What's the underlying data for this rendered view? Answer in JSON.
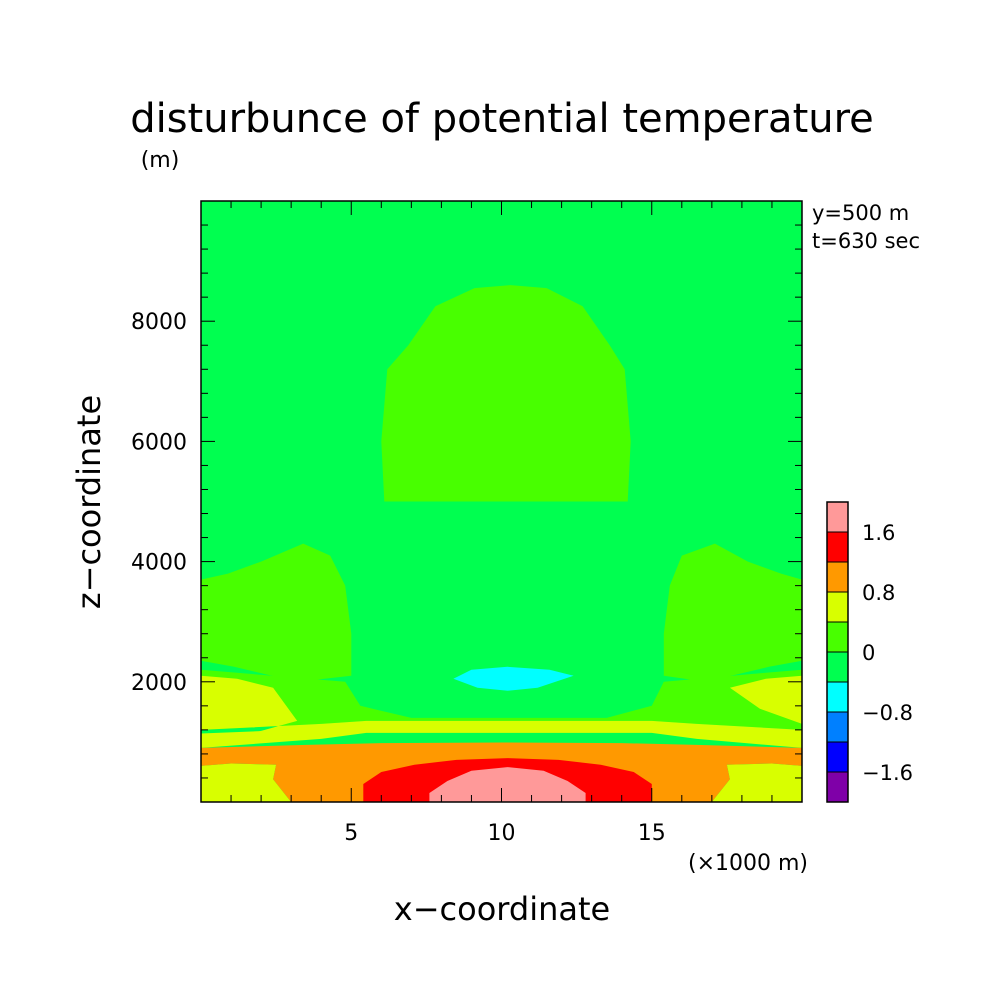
{
  "chart_data": {
    "type": "heatmap",
    "title": "disturbunce of potential temperature",
    "y_unit": "(m)",
    "xlabel": "x−coordinate",
    "ylabel": "z−coordinate",
    "x_scale_note": "(×1000 m)",
    "annotations": [
      "y=500 m",
      "t=630 sec"
    ],
    "xlim": [
      0,
      20
    ],
    "ylim": [
      0,
      10000
    ],
    "x_ticks": [
      5,
      10,
      15
    ],
    "x_tick_labels": [
      "5",
      "10",
      "15"
    ],
    "y_ticks": [
      2000,
      4000,
      6000,
      8000
    ],
    "y_tick_labels": [
      "2000",
      "4000",
      "6000",
      "8000"
    ],
    "colorbar": {
      "levels": [
        -2.0,
        -1.6,
        -1.2,
        -0.8,
        -0.4,
        0,
        0.4,
        0.8,
        1.2,
        1.6,
        2.0
      ],
      "colors": [
        "#7f00a8",
        "#0000ff",
        "#0080ff",
        "#00ffff",
        "#00ff50",
        "#48ff00",
        "#d8ff00",
        "#ff9900",
        "#ff0000",
        "#ff9999"
      ],
      "tick_values": [
        1.6,
        0.8,
        0,
        -0.8,
        -1.6
      ],
      "tick_labels": [
        "1.6",
        "0.8",
        "0",
        "−0.8",
        "−1.6"
      ]
    },
    "background_level_color": "#00ff50",
    "regions": [
      {
        "name": "warm-dome",
        "level_range": [
          0,
          0.4
        ],
        "color": "#48ff00",
        "polygon": [
          [
            6.1,
            5000
          ],
          [
            6.0,
            6000
          ],
          [
            6.2,
            7200
          ],
          [
            6.9,
            7600
          ],
          [
            7.8,
            8250
          ],
          [
            9.1,
            8550
          ],
          [
            10.3,
            8600
          ],
          [
            11.5,
            8550
          ],
          [
            12.7,
            8250
          ],
          [
            13.6,
            7600
          ],
          [
            14.1,
            7200
          ],
          [
            14.3,
            6000
          ],
          [
            14.2,
            5000
          ]
        ]
      },
      {
        "name": "left-band",
        "level_range": [
          0,
          0.4
        ],
        "color": "#48ff00",
        "polygon": [
          [
            0,
            2350
          ],
          [
            1.1,
            2250
          ],
          [
            3.2,
            2000
          ],
          [
            5.0,
            2100
          ],
          [
            5.0,
            2800
          ],
          [
            4.8,
            3600
          ],
          [
            4.3,
            4100
          ],
          [
            3.4,
            4300
          ],
          [
            2.0,
            4000
          ],
          [
            0.9,
            3800
          ],
          [
            0,
            3700
          ]
        ]
      },
      {
        "name": "right-band",
        "level_range": [
          0,
          0.4
        ],
        "color": "#48ff00",
        "polygon": [
          [
            20,
            2350
          ],
          [
            18.9,
            2250
          ],
          [
            16.8,
            2000
          ],
          [
            15.4,
            2100
          ],
          [
            15.4,
            2800
          ],
          [
            15.6,
            3600
          ],
          [
            16.0,
            4100
          ],
          [
            17.1,
            4300
          ],
          [
            18.2,
            4000
          ],
          [
            19.3,
            3800
          ],
          [
            20,
            3700
          ]
        ]
      },
      {
        "name": "lower-band",
        "level_range": [
          0,
          0.4
        ],
        "color": "#48ff00",
        "polygon": [
          [
            0,
            1200
          ],
          [
            4.0,
            1300
          ],
          [
            5.5,
            1350
          ],
          [
            15.0,
            1350
          ],
          [
            16.5,
            1300
          ],
          [
            20,
            1200
          ],
          [
            20,
            2200
          ],
          [
            18.8,
            2150
          ],
          [
            15.4,
            2000
          ],
          [
            15.0,
            1600
          ],
          [
            13.5,
            1400
          ],
          [
            7.0,
            1400
          ],
          [
            5.3,
            1600
          ],
          [
            4.8,
            2000
          ],
          [
            1.2,
            2150
          ],
          [
            0,
            2200
          ]
        ]
      },
      {
        "name": "left-yellow",
        "level_range": [
          0.4,
          0.8
        ],
        "color": "#d8ff00",
        "polygon": [
          [
            0,
            900
          ],
          [
            4.0,
            1050
          ],
          [
            5.5,
            1150
          ],
          [
            15.0,
            1150
          ],
          [
            16.5,
            1050
          ],
          [
            20,
            900
          ],
          [
            20,
            1300
          ],
          [
            18.6,
            1550
          ],
          [
            17.6,
            1900
          ],
          [
            18.8,
            2050
          ],
          [
            20,
            2100
          ],
          [
            20,
            1200
          ],
          [
            16.5,
            1300
          ],
          [
            15.0,
            1350
          ],
          [
            5.5,
            1350
          ],
          [
            4.0,
            1300
          ],
          [
            0,
            1200
          ],
          [
            0,
            2100
          ],
          [
            1.2,
            2050
          ],
          [
            2.4,
            1900
          ],
          [
            3.2,
            1350
          ],
          [
            1.4,
            1100
          ],
          [
            0,
            1100
          ]
        ]
      },
      {
        "name": "thin-yellow-band",
        "level_range": [
          0.4,
          0.8
        ],
        "color": "#d8ff00",
        "polygon": [
          [
            0,
            1000
          ],
          [
            4.0,
            1130
          ],
          [
            6.0,
            1200
          ],
          [
            15.0,
            1200
          ],
          [
            17.0,
            1130
          ],
          [
            20,
            1000
          ],
          [
            20,
            1140
          ],
          [
            16.5,
            1220
          ],
          [
            15.0,
            1260
          ],
          [
            6.0,
            1260
          ],
          [
            4.0,
            1220
          ],
          [
            0,
            1140
          ]
        ]
      },
      {
        "name": "bottom-yellow",
        "level_range": [
          0.4,
          0.8
        ],
        "color": "#d8ff00",
        "polygon": [
          [
            0,
            0
          ],
          [
            20,
            0
          ],
          [
            20,
            600
          ],
          [
            19.0,
            640
          ],
          [
            17.5,
            620
          ],
          [
            17.6,
            380
          ],
          [
            17.0,
            0
          ],
          [
            3.0,
            0
          ],
          [
            2.4,
            380
          ],
          [
            2.5,
            620
          ],
          [
            1.0,
            640
          ],
          [
            0,
            600
          ]
        ]
      },
      {
        "name": "orange",
        "level_range": [
          0.8,
          1.2
        ],
        "color": "#ff9900",
        "polygon": [
          [
            0,
            600
          ],
          [
            1.0,
            640
          ],
          [
            2.5,
            620
          ],
          [
            2.4,
            380
          ],
          [
            3.0,
            0
          ],
          [
            17.0,
            0
          ],
          [
            17.6,
            380
          ],
          [
            17.5,
            620
          ],
          [
            19.0,
            640
          ],
          [
            20,
            600
          ],
          [
            20,
            900
          ],
          [
            16.5,
            950
          ],
          [
            14.0,
            980
          ],
          [
            10.0,
            990
          ],
          [
            6.0,
            980
          ],
          [
            3.5,
            950
          ],
          [
            0,
            900
          ]
        ]
      },
      {
        "name": "red",
        "level_range": [
          1.2,
          1.6
        ],
        "color": "#ff0000",
        "polygon": [
          [
            5.4,
            0
          ],
          [
            5.4,
            300
          ],
          [
            6.0,
            500
          ],
          [
            7.1,
            620
          ],
          [
            8.5,
            700
          ],
          [
            10.2,
            730
          ],
          [
            11.9,
            700
          ],
          [
            13.3,
            620
          ],
          [
            14.4,
            500
          ],
          [
            15.0,
            300
          ],
          [
            15.0,
            0
          ]
        ]
      },
      {
        "name": "pink",
        "level_range": [
          1.6,
          2.0
        ],
        "color": "#ff9999",
        "polygon": [
          [
            7.6,
            0
          ],
          [
            7.6,
            150
          ],
          [
            8.2,
            350
          ],
          [
            9.0,
            520
          ],
          [
            10.2,
            580
          ],
          [
            11.4,
            520
          ],
          [
            12.2,
            350
          ],
          [
            12.8,
            150
          ],
          [
            12.8,
            0
          ]
        ]
      },
      {
        "name": "cold-spot",
        "level_range": [
          -0.8,
          -0.4
        ],
        "color": "#00ffff",
        "polygon": [
          [
            8.4,
            2050
          ],
          [
            9.2,
            1900
          ],
          [
            10.2,
            1850
          ],
          [
            11.2,
            1900
          ],
          [
            12.4,
            2100
          ],
          [
            11.6,
            2200
          ],
          [
            10.2,
            2250
          ],
          [
            9.0,
            2200
          ]
        ]
      }
    ]
  }
}
